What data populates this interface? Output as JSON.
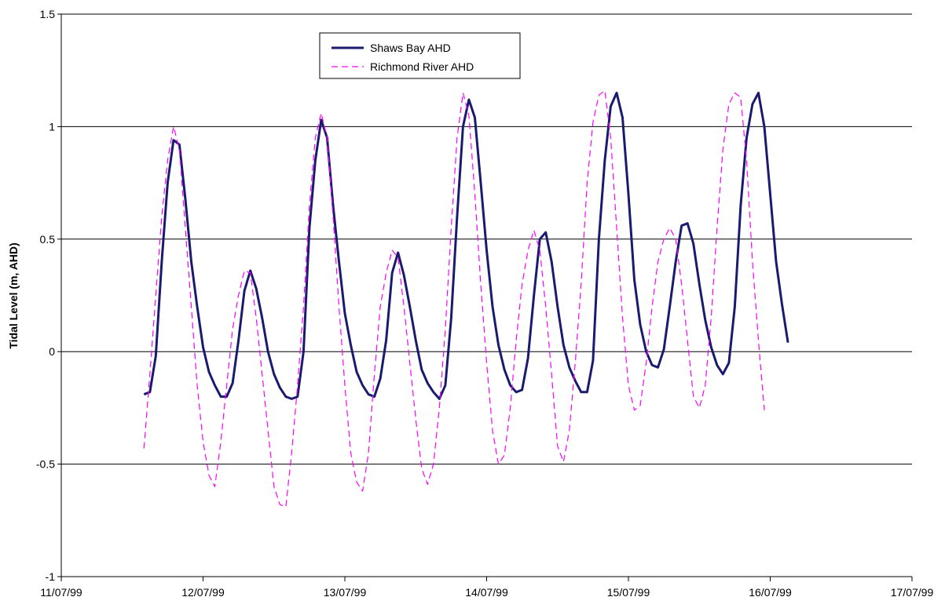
{
  "chart_data": {
    "type": "line",
    "title": "",
    "xlabel": "",
    "ylabel": "Tidal Level (m, AHD)",
    "ylim": [
      -1,
      1.5
    ],
    "yticks": [
      {
        "value": -1,
        "label": "-1"
      },
      {
        "value": -0.5,
        "label": "-0.5"
      },
      {
        "value": 0,
        "label": "0"
      },
      {
        "value": 0.5,
        "label": "0.5"
      },
      {
        "value": 1,
        "label": "1"
      },
      {
        "value": 1.5,
        "label": "1.5"
      }
    ],
    "xlim": [
      "11/07/99",
      "17/07/99"
    ],
    "xticks": [
      "11/07/99",
      "12/07/99",
      "13/07/99",
      "14/07/99",
      "15/07/99",
      "16/07/99",
      "17/07/99"
    ],
    "grid": "horizontal",
    "legend_position": "top",
    "series": [
      {
        "name": "Shaws Bay AHD",
        "color": "#1a1a6e",
        "style": "solid",
        "points": [
          [
            "11/07/99 14:00",
            -0.19
          ],
          [
            "11/07/99 15:00",
            -0.18
          ],
          [
            "11/07/99 16:00",
            -0.02
          ],
          [
            "11/07/99 17:00",
            0.4
          ],
          [
            "11/07/99 18:00",
            0.75
          ],
          [
            "11/07/99 19:00",
            0.94
          ],
          [
            "11/07/99 20:00",
            0.92
          ],
          [
            "11/07/99 21:00",
            0.68
          ],
          [
            "11/07/99 22:00",
            0.4
          ],
          [
            "11/07/99 23:00",
            0.2
          ],
          [
            "12/07/99 00:00",
            0.02
          ],
          [
            "12/07/99 01:00",
            -0.09
          ],
          [
            "12/07/99 02:00",
            -0.15
          ],
          [
            "12/07/99 03:00",
            -0.2
          ],
          [
            "12/07/99 04:00",
            -0.2
          ],
          [
            "12/07/99 05:00",
            -0.14
          ],
          [
            "12/07/99 06:00",
            0.05
          ],
          [
            "12/07/99 07:00",
            0.27
          ],
          [
            "12/07/99 08:00",
            0.36
          ],
          [
            "12/07/99 09:00",
            0.28
          ],
          [
            "12/07/99 10:00",
            0.15
          ],
          [
            "12/07/99 11:00",
            0.0
          ],
          [
            "12/07/99 12:00",
            -0.1
          ],
          [
            "12/07/99 13:00",
            -0.16
          ],
          [
            "12/07/99 14:00",
            -0.2
          ],
          [
            "12/07/99 15:00",
            -0.21
          ],
          [
            "12/07/99 16:00",
            -0.2
          ],
          [
            "12/07/99 17:00",
            0.0
          ],
          [
            "12/07/99 18:00",
            0.55
          ],
          [
            "12/07/99 19:00",
            0.85
          ],
          [
            "12/07/99 20:00",
            1.03
          ],
          [
            "12/07/99 21:00",
            0.95
          ],
          [
            "12/07/99 22:00",
            0.65
          ],
          [
            "12/07/99 23:00",
            0.4
          ],
          [
            "13/07/99 00:00",
            0.17
          ],
          [
            "13/07/99 01:00",
            0.03
          ],
          [
            "13/07/99 02:00",
            -0.09
          ],
          [
            "13/07/99 03:00",
            -0.15
          ],
          [
            "13/07/99 04:00",
            -0.19
          ],
          [
            "13/07/99 05:00",
            -0.2
          ],
          [
            "13/07/99 06:00",
            -0.12
          ],
          [
            "13/07/99 07:00",
            0.05
          ],
          [
            "13/07/99 08:00",
            0.35
          ],
          [
            "13/07/99 09:00",
            0.44
          ],
          [
            "13/07/99 10:00",
            0.34
          ],
          [
            "13/07/99 11:00",
            0.2
          ],
          [
            "13/07/99 12:00",
            0.05
          ],
          [
            "13/07/99 13:00",
            -0.08
          ],
          [
            "13/07/99 14:00",
            -0.14
          ],
          [
            "13/07/99 15:00",
            -0.18
          ],
          [
            "13/07/99 16:00",
            -0.21
          ],
          [
            "13/07/99 17:00",
            -0.15
          ],
          [
            "13/07/99 18:00",
            0.15
          ],
          [
            "13/07/99 19:00",
            0.6
          ],
          [
            "13/07/99 20:00",
            1.0
          ],
          [
            "13/07/99 21:00",
            1.12
          ],
          [
            "13/07/99 22:00",
            1.04
          ],
          [
            "13/07/99 23:00",
            0.75
          ],
          [
            "14/07/99 00:00",
            0.45
          ],
          [
            "14/07/99 01:00",
            0.2
          ],
          [
            "14/07/99 02:00",
            0.03
          ],
          [
            "14/07/99 03:00",
            -0.08
          ],
          [
            "14/07/99 04:00",
            -0.15
          ],
          [
            "14/07/99 05:00",
            -0.18
          ],
          [
            "14/07/99 06:00",
            -0.17
          ],
          [
            "14/07/99 07:00",
            -0.03
          ],
          [
            "14/07/99 08:00",
            0.25
          ],
          [
            "14/07/99 09:00",
            0.5
          ],
          [
            "14/07/99 10:00",
            0.53
          ],
          [
            "14/07/99 11:00",
            0.4
          ],
          [
            "14/07/99 12:00",
            0.2
          ],
          [
            "14/07/99 13:00",
            0.03
          ],
          [
            "14/07/99 14:00",
            -0.07
          ],
          [
            "14/07/99 15:00",
            -0.13
          ],
          [
            "14/07/99 16:00",
            -0.18
          ],
          [
            "14/07/99 17:00",
            -0.18
          ],
          [
            "14/07/99 18:00",
            -0.04
          ],
          [
            "14/07/99 19:00",
            0.5
          ],
          [
            "14/07/99 20:00",
            0.85
          ],
          [
            "14/07/99 21:00",
            1.09
          ],
          [
            "14/07/99 22:00",
            1.15
          ],
          [
            "14/07/99 23:00",
            1.04
          ],
          [
            "15/07/99 00:00",
            0.7
          ],
          [
            "15/07/99 01:00",
            0.32
          ],
          [
            "15/07/99 02:00",
            0.12
          ],
          [
            "15/07/99 03:00",
            0.0
          ],
          [
            "15/07/99 04:00",
            -0.06
          ],
          [
            "15/07/99 05:00",
            -0.07
          ],
          [
            "15/07/99 06:00",
            0.01
          ],
          [
            "15/07/99 07:00",
            0.2
          ],
          [
            "15/07/99 08:00",
            0.4
          ],
          [
            "15/07/99 09:00",
            0.56
          ],
          [
            "15/07/99 10:00",
            0.57
          ],
          [
            "15/07/99 11:00",
            0.48
          ],
          [
            "15/07/99 12:00",
            0.3
          ],
          [
            "15/07/99 13:00",
            0.14
          ],
          [
            "15/07/99 14:00",
            0.02
          ],
          [
            "15/07/99 15:00",
            -0.06
          ],
          [
            "15/07/99 16:00",
            -0.1
          ],
          [
            "15/07/99 17:00",
            -0.05
          ],
          [
            "15/07/99 18:00",
            0.2
          ],
          [
            "15/07/99 19:00",
            0.65
          ],
          [
            "15/07/99 20:00",
            0.95
          ],
          [
            "15/07/99 21:00",
            1.1
          ],
          [
            "15/07/99 22:00",
            1.15
          ],
          [
            "15/07/99 23:00",
            1.0
          ],
          [
            "16/07/99 00:00",
            0.7
          ],
          [
            "16/07/99 01:00",
            0.4
          ],
          [
            "16/07/99 02:00",
            0.21
          ],
          [
            "16/07/99 03:00",
            0.04
          ]
        ]
      },
      {
        "name": "Richmond River AHD",
        "color": "#ff00ff",
        "style": "dashed",
        "points": [
          [
            "11/07/99 14:00",
            -0.43
          ],
          [
            "11/07/99 15:00",
            -0.1
          ],
          [
            "11/07/99 16:00",
            0.25
          ],
          [
            "11/07/99 17:00",
            0.6
          ],
          [
            "11/07/99 18:00",
            0.85
          ],
          [
            "11/07/99 19:00",
            1.0
          ],
          [
            "11/07/99 20:00",
            0.9
          ],
          [
            "11/07/99 21:00",
            0.55
          ],
          [
            "11/07/99 22:00",
            0.2
          ],
          [
            "11/07/99 23:00",
            -0.15
          ],
          [
            "12/07/99 00:00",
            -0.4
          ],
          [
            "12/07/99 01:00",
            -0.55
          ],
          [
            "12/07/99 02:00",
            -0.6
          ],
          [
            "12/07/99 03:00",
            -0.4
          ],
          [
            "12/07/99 04:00",
            -0.15
          ],
          [
            "12/07/99 05:00",
            0.1
          ],
          [
            "12/07/99 06:00",
            0.25
          ],
          [
            "12/07/99 07:00",
            0.36
          ],
          [
            "12/07/99 08:00",
            0.35
          ],
          [
            "12/07/99 09:00",
            0.15
          ],
          [
            "12/07/99 10:00",
            -0.1
          ],
          [
            "12/07/99 11:00",
            -0.35
          ],
          [
            "12/07/99 12:00",
            -0.6
          ],
          [
            "12/07/99 13:00",
            -0.68
          ],
          [
            "12/07/99 14:00",
            -0.69
          ],
          [
            "12/07/99 15:00",
            -0.45
          ],
          [
            "12/07/99 16:00",
            -0.15
          ],
          [
            "12/07/99 17:00",
            0.2
          ],
          [
            "12/07/99 18:00",
            0.65
          ],
          [
            "12/07/99 19:00",
            0.95
          ],
          [
            "12/07/99 20:00",
            1.06
          ],
          [
            "12/07/99 21:00",
            0.95
          ],
          [
            "12/07/99 22:00",
            0.6
          ],
          [
            "12/07/99 23:00",
            0.2
          ],
          [
            "13/07/99 00:00",
            -0.15
          ],
          [
            "13/07/99 01:00",
            -0.45
          ],
          [
            "13/07/99 02:00",
            -0.58
          ],
          [
            "13/07/99 03:00",
            -0.62
          ],
          [
            "13/07/99 04:00",
            -0.45
          ],
          [
            "13/07/99 05:00",
            -0.1
          ],
          [
            "13/07/99 06:00",
            0.2
          ],
          [
            "13/07/99 07:00",
            0.35
          ],
          [
            "13/07/99 08:00",
            0.45
          ],
          [
            "13/07/99 09:00",
            0.42
          ],
          [
            "13/07/99 10:00",
            0.2
          ],
          [
            "13/07/99 11:00",
            -0.05
          ],
          [
            "13/07/99 12:00",
            -0.3
          ],
          [
            "13/07/99 13:00",
            -0.52
          ],
          [
            "13/07/99 14:00",
            -0.59
          ],
          [
            "13/07/99 15:00",
            -0.5
          ],
          [
            "13/07/99 16:00",
            -0.25
          ],
          [
            "13/07/99 17:00",
            0.1
          ],
          [
            "13/07/99 18:00",
            0.55
          ],
          [
            "13/07/99 19:00",
            0.95
          ],
          [
            "13/07/99 20:00",
            1.15
          ],
          [
            "13/07/99 21:00",
            1.05
          ],
          [
            "13/07/99 22:00",
            0.7
          ],
          [
            "13/07/99 23:00",
            0.3
          ],
          [
            "14/07/99 00:00",
            -0.05
          ],
          [
            "14/07/99 01:00",
            -0.35
          ],
          [
            "14/07/99 02:00",
            -0.5
          ],
          [
            "14/07/99 03:00",
            -0.46
          ],
          [
            "14/07/99 04:00",
            -0.25
          ],
          [
            "14/07/99 05:00",
            0.05
          ],
          [
            "14/07/99 06:00",
            0.3
          ],
          [
            "14/07/99 07:00",
            0.45
          ],
          [
            "14/07/99 08:00",
            0.54
          ],
          [
            "14/07/99 09:00",
            0.45
          ],
          [
            "14/07/99 10:00",
            0.2
          ],
          [
            "14/07/99 11:00",
            -0.1
          ],
          [
            "14/07/99 12:00",
            -0.42
          ],
          [
            "14/07/99 13:00",
            -0.49
          ],
          [
            "14/07/99 14:00",
            -0.35
          ],
          [
            "14/07/99 15:00",
            -0.05
          ],
          [
            "14/07/99 16:00",
            0.3
          ],
          [
            "14/07/99 17:00",
            0.75
          ],
          [
            "14/07/99 18:00",
            1.02
          ],
          [
            "14/07/99 19:00",
            1.14
          ],
          [
            "14/07/99 20:00",
            1.16
          ],
          [
            "14/07/99 21:00",
            0.95
          ],
          [
            "14/07/99 22:00",
            0.55
          ],
          [
            "14/07/99 23:00",
            0.15
          ],
          [
            "15/07/99 00:00",
            -0.15
          ],
          [
            "15/07/99 01:00",
            -0.26
          ],
          [
            "15/07/99 02:00",
            -0.24
          ],
          [
            "15/07/99 03:00",
            -0.05
          ],
          [
            "15/07/99 04:00",
            0.2
          ],
          [
            "15/07/99 05:00",
            0.4
          ],
          [
            "15/07/99 06:00",
            0.5
          ],
          [
            "15/07/99 07:00",
            0.55
          ],
          [
            "15/07/99 08:00",
            0.5
          ],
          [
            "15/07/99 09:00",
            0.3
          ],
          [
            "15/07/99 10:00",
            0.05
          ],
          [
            "15/07/99 11:00",
            -0.2
          ],
          [
            "15/07/99 12:00",
            -0.25
          ],
          [
            "15/07/99 13:00",
            -0.15
          ],
          [
            "15/07/99 14:00",
            0.15
          ],
          [
            "15/07/99 15:00",
            0.55
          ],
          [
            "15/07/99 16:00",
            0.9
          ],
          [
            "15/07/99 17:00",
            1.1
          ],
          [
            "15/07/99 18:00",
            1.15
          ],
          [
            "15/07/99 19:00",
            1.13
          ],
          [
            "15/07/99 20:00",
            0.85
          ],
          [
            "15/07/99 21:00",
            0.4
          ],
          [
            "15/07/99 22:00",
            0.05
          ],
          [
            "15/07/99 23:00",
            -0.26
          ]
        ]
      }
    ]
  }
}
